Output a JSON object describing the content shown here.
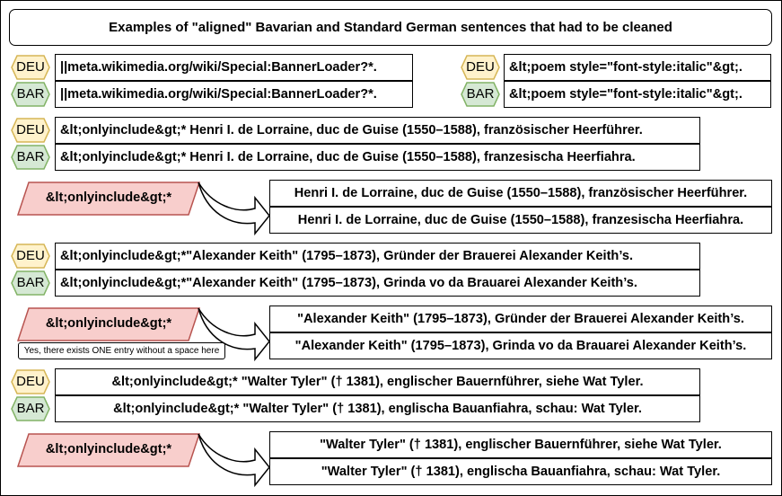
{
  "title": "Examples of \"aligned\" Bavarian and Standard German sentences that had to be cleaned",
  "labels": {
    "deu": "DEU",
    "bar": "BAR"
  },
  "pair1": {
    "deu": "||meta.wikimedia.org/wiki/Special:BannerLoader?*.",
    "bar": "||meta.wikimedia.org/wiki/Special:BannerLoader?*."
  },
  "pair2": {
    "deu": "&lt;poem style=\"font-style:italic\"&gt;.",
    "bar": "&lt;poem style=\"font-style:italic\"&gt;."
  },
  "example1": {
    "deu": "&lt;onlyinclude&gt;* Henri I. de Lorraine, duc de Guise (1550–1588), französischer Heerführer.",
    "bar": "&lt;onlyinclude&gt;* Henri I. de Lorraine, duc de Guise (1550–1588), franzesischa Heerfiahra.",
    "removed": "&lt;onlyinclude&gt;*",
    "clean_deu": "Henri I. de Lorraine, duc de Guise (1550–1588), französischer Heerführer.",
    "clean_bar": "Henri I. de Lorraine, duc de Guise (1550–1588), franzesischa Heerfiahra."
  },
  "example2": {
    "deu": "&lt;onlyinclude&gt;*\"Alexander Keith\" (1795–1873), Gründer der Brauerei Alexander Keith’s.",
    "bar": "&lt;onlyinclude&gt;*\"Alexander Keith\" (1795–1873), Grinda vo da Brauarei Alexander Keith’s.",
    "removed": "&lt;onlyinclude&gt;*",
    "note": "Yes, there exists ONE entry without a space here",
    "clean_deu": "\"Alexander Keith\" (1795–1873), Gründer der Brauerei Alexander Keith’s.",
    "clean_bar": "\"Alexander Keith\" (1795–1873), Grinda vo da Brauarei Alexander Keith’s."
  },
  "example3": {
    "deu": "&lt;onlyinclude&gt;* \"Walter Tyler\" († 1381), englischer Bauernführer, siehe Wat Tyler.",
    "bar": "&lt;onlyinclude&gt;* \"Walter Tyler\" († 1381), englischa Bauanfiahra, schau: Wat Tyler.",
    "removed": "&lt;onlyinclude&gt;*",
    "clean_deu": "\"Walter Tyler\" († 1381), englischer Bauernführer, siehe Wat Tyler.",
    "clean_bar": "\"Walter Tyler\" († 1381), englischa Bauanfiahra, schau: Wat Tyler."
  },
  "colors": {
    "deu_fill": "#fff2cc",
    "deu_stroke": "#d6b656",
    "bar_fill": "#d5e8d4",
    "bar_stroke": "#82b366",
    "removed_fill": "#f8cecc",
    "removed_stroke": "#b85450"
  }
}
